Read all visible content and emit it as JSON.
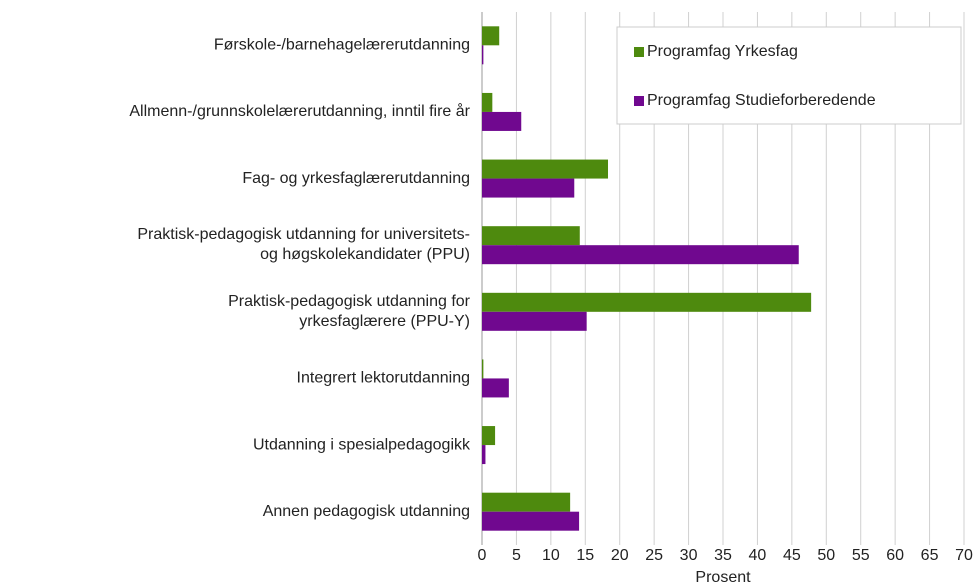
{
  "chart_data": {
    "type": "barh",
    "categories": [
      "Førskole-/barnehagelærerutdanning",
      "Allmenn-/grunnskolelærerutdanning, inntil fire år",
      "Fag- og yrkesfaglærerutdanning",
      "Praktisk-pedagogisk utdanning for universitets-\nog høgskolekandidater (PPU)",
      "Praktisk-pedagogisk utdanning for\nyrkesfaglærere (PPU-Y)",
      "Integrert lektorutdanning",
      "Utdanning i spesialpedagogikk",
      "Annen pedagogisk utdanning"
    ],
    "series": [
      {
        "name": "Programfag Yrkesfag",
        "color": "#4e8a0e",
        "values": [
          2.5,
          1.5,
          18.3,
          14.2,
          47.8,
          0.2,
          1.9,
          12.8
        ]
      },
      {
        "name": "Programfag Studieforberedende",
        "color": "#70088f",
        "values": [
          0.2,
          5.7,
          13.4,
          46.0,
          15.2,
          3.9,
          0.5,
          14.1
        ]
      }
    ],
    "xlabel": "Prosent",
    "xlim": [
      0,
      70
    ],
    "xticks": [
      0,
      5,
      10,
      15,
      20,
      25,
      30,
      35,
      40,
      45,
      50,
      55,
      60,
      65,
      70
    ],
    "grid": true,
    "legend": "upper right"
  }
}
